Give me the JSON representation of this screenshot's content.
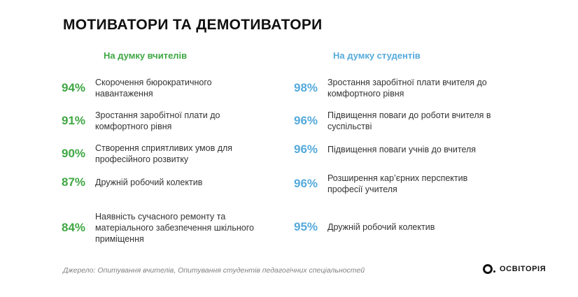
{
  "slide": {
    "title": "МОТИВАТОРИ ТА ДЕМОТИВАТОРИ",
    "columns": [
      {
        "header": "На думку вчителів",
        "accent": "#3FA744",
        "items": [
          {
            "percent": "94%",
            "text": "Скорочення бюрократичного навантаження"
          },
          {
            "percent": "91%",
            "text": "Зростання заробітної плати до комфортного рівня"
          },
          {
            "percent": "90%",
            "text": "Створення сприятливих умов для професійного розвитку"
          },
          {
            "percent": "87%",
            "text": "Дружній робочий колектив"
          },
          {
            "percent": "84%",
            "text": "Наявність сучасного ремонту та матеріального забезпечення шкільного приміщення"
          }
        ]
      },
      {
        "header": "На думку студентів",
        "accent": "#55AADC",
        "items": [
          {
            "percent": "98%",
            "text": "Зростання заробітної плати вчителя до комфортного рівня"
          },
          {
            "percent": "96%",
            "text": "Підвищення поваги до роботи вчителя в суспільстві"
          },
          {
            "percent": "96%",
            "text": "Підвищення поваги учнів до вчителя"
          },
          {
            "percent": "96%",
            "text": "Розширення кар’єрних перспектив професії учителя"
          },
          {
            "percent": "95%",
            "text": "Дружній робочий колектив"
          }
        ]
      }
    ],
    "footer": {
      "source": "Джерело: Опитування вчителів, Опитування студентів педагогічних спеціальностей",
      "logo_text": "ОСВІТОРІЯ"
    }
  }
}
